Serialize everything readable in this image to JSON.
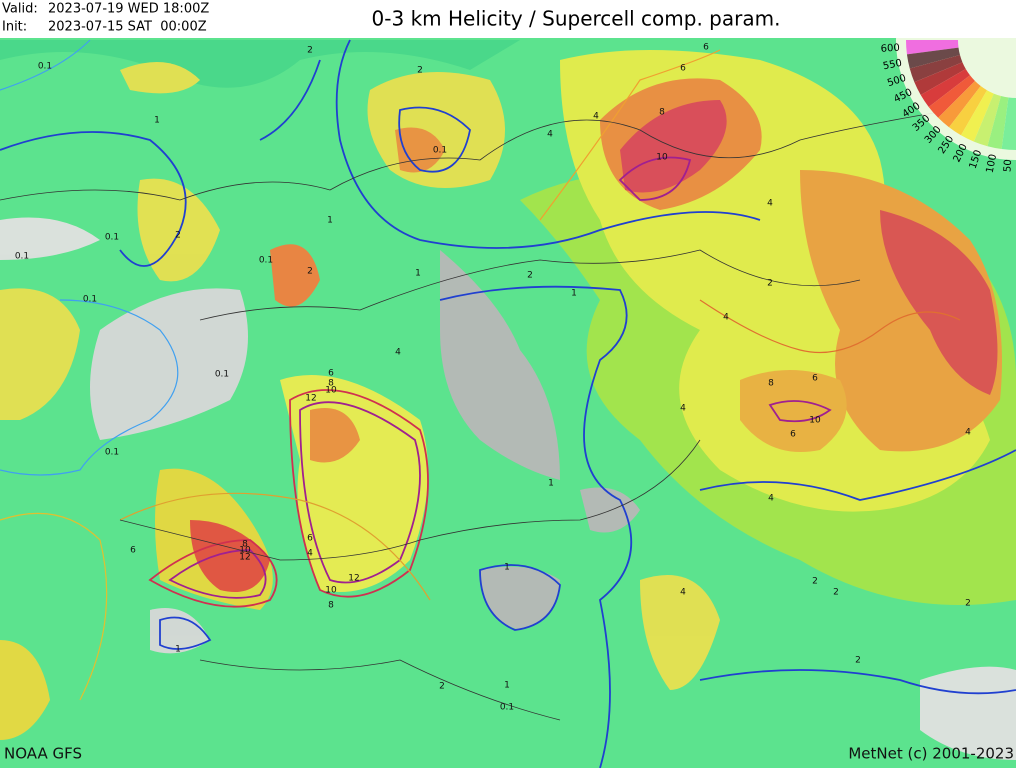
{
  "header": {
    "valid_label": "Valid:",
    "valid": "2023-07-19 WED 18:00Z",
    "init_label": "Init:",
    "init": "2023-07-15 SAT  00:00Z",
    "title": "0-3 km Helicity / Supercell comp. param."
  },
  "footer": {
    "source": "NOAA GFS",
    "copyright": "MetNet (c) 2001-2023"
  },
  "legend": {
    "labels": [
      600,
      550,
      500,
      450,
      400,
      350,
      300,
      250,
      200,
      150,
      100,
      50
    ],
    "colors": [
      "#f06ee0",
      "#6b4a4a",
      "#8a4040",
      "#b03a3a",
      "#d83c3c",
      "#f05a3a",
      "#f89a3a",
      "#f8d040",
      "#f0f050",
      "#c8f070",
      "#9af080",
      "#7aee9a"
    ]
  },
  "contour_labels": [
    "0.1",
    "1",
    "0.1",
    "2",
    "0.1",
    "0.1",
    "2",
    "1",
    "2",
    "4",
    "6",
    "8",
    "10",
    "6",
    "4",
    "1",
    "0.1",
    "0.1",
    "1",
    "2",
    "0.1",
    "0.1",
    "1",
    "2",
    "4",
    "6",
    "8",
    "10",
    "12",
    "12",
    "10",
    "8",
    "6",
    "4",
    "6",
    "8",
    "10",
    "12",
    "1",
    "1",
    "4",
    "2",
    "4",
    "6",
    "8",
    "10",
    "4",
    "6",
    "4",
    "2",
    "2",
    "4",
    "2",
    "2",
    "4",
    "1",
    "0.1",
    "2"
  ]
}
